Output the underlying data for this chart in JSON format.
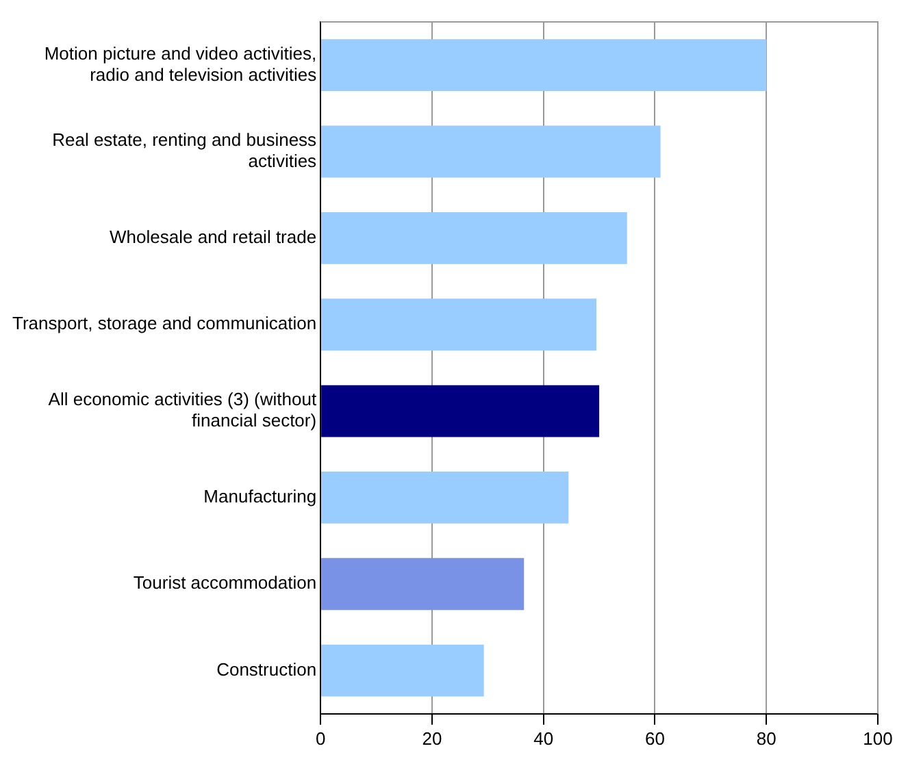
{
  "chart_data": {
    "type": "bar",
    "orientation": "horizontal",
    "categories": [
      "Motion picture and video activities, radio and television activities",
      "Real estate, renting and business activities",
      "Wholesale and retail trade",
      "Transport, storage and communication",
      "All economic activities (3) (without financial sector)",
      "Manufacturing",
      "Tourist accommodation",
      "Construction"
    ],
    "values": [
      80,
      61,
      55,
      49.5,
      50,
      44.5,
      36.5,
      29.3
    ],
    "colors": [
      "#99ccff",
      "#99ccff",
      "#99ccff",
      "#99ccff",
      "#000080",
      "#99ccff",
      "#7a92e6",
      "#99ccff"
    ],
    "xlim": [
      0,
      100
    ],
    "xticks": [
      0,
      20,
      40,
      60,
      80,
      100
    ],
    "grid": "x"
  }
}
